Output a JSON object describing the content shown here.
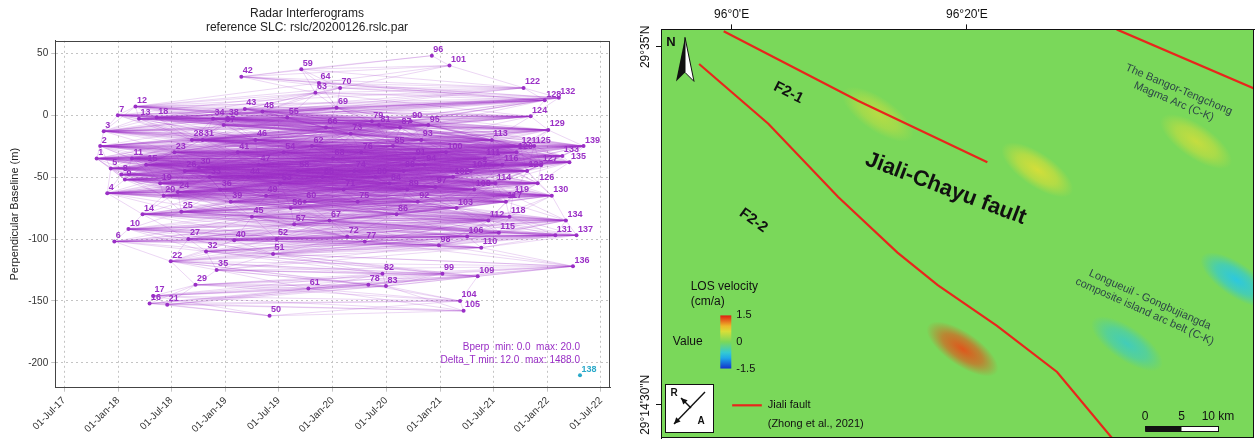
{
  "chart_data": [
    {
      "type": "scatter",
      "title": "Radar Interferograms",
      "subtitle": "reference SLC: rslc/20200126.rslc.par",
      "y_label": "Perpendicular Baseline (m)",
      "x": [
        "2017-10-20",
        "2017-11-01",
        "2017-11-13",
        "2017-11-25",
        "2017-12-07",
        "2017-12-19",
        "2017-12-31",
        "2018-01-12",
        "2018-01-24",
        "2018-02-05",
        "2018-02-17",
        "2018-03-01",
        "2018-03-13",
        "2018-03-25",
        "2018-04-06",
        "2018-04-18",
        "2018-04-30",
        "2018-05-12",
        "2018-05-24",
        "2018-06-05",
        "2018-06-17",
        "2018-06-29",
        "2018-07-11",
        "2018-07-23",
        "2018-08-04",
        "2018-08-16",
        "2018-08-28",
        "2018-09-09",
        "2018-09-21",
        "2018-10-03",
        "2018-10-15",
        "2018-10-27",
        "2018-11-08",
        "2018-11-20",
        "2018-12-02",
        "2018-12-14",
        "2018-12-26",
        "2019-01-07",
        "2019-01-19",
        "2019-01-31",
        "2019-02-12",
        "2019-02-24",
        "2019-03-08",
        "2019-03-20",
        "2019-04-01",
        "2019-04-13",
        "2019-04-25",
        "2019-05-07",
        "2019-05-19",
        "2019-05-31",
        "2019-06-12",
        "2019-06-24",
        "2019-07-06",
        "2019-07-18",
        "2019-07-30",
        "2019-08-11",
        "2019-08-23",
        "2019-09-04",
        "2019-09-16",
        "2019-09-28",
        "2019-10-10",
        "2019-10-22",
        "2019-11-03",
        "2019-11-15",
        "2019-11-27",
        "2019-12-09",
        "2019-12-21",
        "2020-01-02",
        "2020-01-14",
        "2020-01-26",
        "2020-02-07",
        "2020-02-19",
        "2020-03-02",
        "2020-03-14",
        "2020-03-26",
        "2020-04-07",
        "2020-04-19",
        "2020-05-01",
        "2020-05-13",
        "2020-05-25",
        "2020-06-06",
        "2020-06-18",
        "2020-06-30",
        "2020-07-12",
        "2020-07-24",
        "2020-08-05",
        "2020-08-17",
        "2020-08-29",
        "2020-09-10",
        "2020-09-22",
        "2020-10-04",
        "2020-10-16",
        "2020-10-28",
        "2020-11-09",
        "2020-11-21",
        "2020-12-03",
        "2020-12-15",
        "2020-12-27",
        "2021-01-08",
        "2021-01-20",
        "2021-02-01",
        "2021-02-13",
        "2021-02-25",
        "2021-03-09",
        "2021-03-21",
        "2021-04-02",
        "2021-04-14",
        "2021-04-26",
        "2021-05-08",
        "2021-05-20",
        "2021-06-01",
        "2021-06-13",
        "2021-06-25",
        "2021-07-07",
        "2021-07-19",
        "2021-07-31",
        "2021-08-12",
        "2021-08-24",
        "2021-09-05",
        "2021-09-17",
        "2021-09-29",
        "2021-10-11",
        "2021-10-23",
        "2021-11-04",
        "2021-11-16",
        "2021-11-28",
        "2021-12-10",
        "2021-12-22",
        "2022-01-03",
        "2022-01-15",
        "2022-01-27",
        "2022-02-08",
        "2022-02-20",
        "2022-03-04",
        "2022-03-16",
        "2022-03-28",
        "2022-04-09",
        "2022-04-21",
        "2022-05-03"
      ],
      "series": [
        {
          "color": "#9a2fc6",
          "values": [
            -35,
            -25,
            -13,
            -63,
            -43,
            -102,
            0,
            -48,
            -52,
            -92,
            -35,
            7,
            -3,
            -80,
            -40,
            -152,
            -146,
            -2,
            -55,
            -65,
            -153,
            -118,
            -30,
            -62,
            -78,
            -45,
            -100,
            -20,
            -137,
            -42,
            -20,
            -110,
            -50,
            -3,
            -125,
            -60,
            -8,
            -3,
            -70,
            -101,
            -30,
            31,
            5,
            -50,
            -82,
            -20,
            -40,
            3,
            -65,
            -162,
            -112,
            -100,
            -55,
            -30,
            -2,
            -75,
            -88,
            -45,
            37,
            -70,
            -140,
            -25,
            18,
            26,
            -50,
            -10,
            -85,
            -35,
            6,
            22,
            -60,
            -98,
            -15,
            -45,
            -70,
            -30,
            -102,
            -137,
            -5,
            -50,
            -8,
            -128,
            -138,
            -55,
            -25,
            -80,
            -10,
            -45,
            -60,
            -5,
            -35,
            -70,
            -20,
            -40,
            -8,
            48,
            -58,
            -105,
            -128,
            -30,
            40,
            -50,
            -75,
            -150,
            -158,
            -98,
            -45,
            -60,
            -130,
            -107,
            -35,
            -85,
            -20,
            -55,
            -95,
            -40,
            -70,
            -82,
            -65,
            -30,
            -25,
            22,
            -45,
            -1,
            -25,
            -55,
            -40,
            12,
            -12,
            -65,
            -97,
            14,
            -33,
            -85,
            -38,
            -122,
            -97,
            -210,
            -25
          ],
          "point_labels": [
            1,
            2,
            3,
            4,
            5,
            6,
            7,
            8,
            9,
            10,
            11,
            12,
            13,
            14,
            15,
            16,
            17,
            18,
            19,
            20,
            21,
            22,
            23,
            24,
            25,
            26,
            27,
            28,
            29,
            30,
            31,
            32,
            33,
            34,
            35,
            36,
            37,
            38,
            39,
            40,
            41,
            42,
            43,
            44,
            45,
            46,
            47,
            48,
            49,
            50,
            51,
            52,
            53,
            54,
            55,
            56,
            57,
            58,
            59,
            60,
            61,
            62,
            63,
            64,
            65,
            66,
            67,
            68,
            69,
            70,
            71,
            72,
            73,
            74,
            75,
            76,
            77,
            78,
            79,
            80,
            81,
            82,
            83,
            84,
            85,
            86,
            87,
            88,
            89,
            90,
            91,
            92,
            93,
            94,
            95,
            96,
            97,
            98,
            99,
            100,
            101,
            102,
            103,
            104,
            105,
            106,
            107,
            108,
            109,
            110,
            111,
            112,
            113,
            114,
            115,
            116,
            117,
            118,
            119,
            120,
            121,
            122,
            123,
            124,
            125,
            126,
            127,
            128,
            129,
            130,
            131,
            132,
            133,
            134,
            135,
            136,
            137,
            138,
            139
          ],
          "colors": [
            "#9a2fc6",
            "#9a2fc6",
            "#9a2fc6",
            "#9a2fc6",
            "#9a2fc6",
            "#9a2fc6",
            "#9a2fc6",
            "#9a2fc6",
            "#9a2fc6",
            "#9a2fc6",
            "#9a2fc6",
            "#9a2fc6",
            "#9a2fc6",
            "#9a2fc6",
            "#9a2fc6",
            "#9a2fc6",
            "#9a2fc6",
            "#9a2fc6",
            "#9a2fc6",
            "#9a2fc6",
            "#9a2fc6",
            "#9a2fc6",
            "#9a2fc6",
            "#9a2fc6",
            "#9a2fc6",
            "#9a2fc6",
            "#9a2fc6",
            "#9a2fc6",
            "#9a2fc6",
            "#9a2fc6",
            "#9a2fc6",
            "#9a2fc6",
            "#9a2fc6",
            "#9a2fc6",
            "#9a2fc6",
            "#9a2fc6",
            "#9a2fc6",
            "#9a2fc6",
            "#9a2fc6",
            "#9a2fc6",
            "#9a2fc6",
            "#9a2fc6",
            "#9a2fc6",
            "#9a2fc6",
            "#9a2fc6",
            "#9a2fc6",
            "#9a2fc6",
            "#9a2fc6",
            "#9a2fc6",
            "#9a2fc6",
            "#9a2fc6",
            "#9a2fc6",
            "#9a2fc6",
            "#9a2fc6",
            "#9a2fc6",
            "#9a2fc6",
            "#9a2fc6",
            "#9a2fc6",
            "#9a2fc6",
            "#9a2fc6",
            "#9a2fc6",
            "#9a2fc6",
            "#9a2fc6",
            "#9a2fc6",
            "#9a2fc6",
            "#9a2fc6",
            "#9a2fc6",
            "#9a2fc6",
            "#9a2fc6",
            "#9a2fc6",
            "#9a2fc6",
            "#9a2fc6",
            "#9a2fc6",
            "#9a2fc6",
            "#9a2fc6",
            "#9a2fc6",
            "#9a2fc6",
            "#9a2fc6",
            "#9a2fc6",
            "#9a2fc6",
            "#9a2fc6",
            "#9a2fc6",
            "#9a2fc6",
            "#9a2fc6",
            "#9a2fc6",
            "#9a2fc6",
            "#9a2fc6",
            "#9a2fc6",
            "#9a2fc6",
            "#9a2fc6",
            "#9a2fc6",
            "#9a2fc6",
            "#9a2fc6",
            "#9a2fc6",
            "#9a2fc6",
            "#9a2fc6",
            "#9a2fc6",
            "#9a2fc6",
            "#9a2fc6",
            "#9a2fc6",
            "#9a2fc6",
            "#9a2fc6",
            "#9a2fc6",
            "#9a2fc6",
            "#9a2fc6",
            "#9a2fc6",
            "#9a2fc6",
            "#9a2fc6",
            "#9a2fc6",
            "#9a2fc6",
            "#9a2fc6",
            "#9a2fc6",
            "#9a2fc6",
            "#9a2fc6",
            "#9a2fc6",
            "#9a2fc6",
            "#9a2fc6",
            "#9a2fc6",
            "#9a2fc6",
            "#9a2fc6",
            "#9a2fc6",
            "#9a2fc6",
            "#9a2fc6",
            "#9a2fc6",
            "#9a2fc6",
            "#9a2fc6",
            "#9a2fc6",
            "#9a2fc6",
            "#9a2fc6",
            "#9a2fc6",
            "#9a2fc6",
            "#9a2fc6",
            "#9a2fc6",
            "#9a2fc6",
            "#9a2fc6",
            "#9a2fc6",
            "#9a2fc6",
            "#29a9c9",
            "#9a2fc6"
          ]
        }
      ],
      "network": {
        "bperp": {
          "text": "Bperp  min: 0.0  max: 20.0",
          "min": 0,
          "max": 20
        },
        "delta_t": {
          "text": "Delta_T min: 12.0  max: 1488.0",
          "min": 12,
          "max": 1488
        }
      },
      "xlim": [
        "2017-06-01",
        "2022-08-01"
      ],
      "xticks": [
        {
          "value": "2017-07-01",
          "label": "01-Jul-17"
        },
        {
          "value": "2018-01-01",
          "label": "01-Jan-18"
        },
        {
          "value": "2018-07-01",
          "label": "01-Jul-18"
        },
        {
          "value": "2019-01-01",
          "label": "01-Jan-19"
        },
        {
          "value": "2019-07-01",
          "label": "01-Jul-19"
        },
        {
          "value": "2020-01-01",
          "label": "01-Jan-20"
        },
        {
          "value": "2020-07-01",
          "label": "01-Jul-20"
        },
        {
          "value": "2021-01-01",
          "label": "01-Jan-21"
        },
        {
          "value": "2021-07-01",
          "label": "01-Jul-21"
        },
        {
          "value": "2022-01-01",
          "label": "01-Jan-22"
        },
        {
          "value": "2022-07-01",
          "label": "01-Jul-22"
        }
      ],
      "ylim": [
        -220,
        60
      ],
      "yticks": [
        -200,
        -150,
        -100,
        -50,
        0,
        50
      ],
      "grid": true
    },
    {
      "type": "map",
      "xlim": [
        95.9,
        96.74
      ],
      "ylim": [
        29.21,
        29.6
      ],
      "xticks": [
        {
          "value": 96,
          "label": "96°0'E"
        },
        {
          "value": 96.3333,
          "label": "96°20'E"
        }
      ],
      "yticks": [
        {
          "value": 29.5833,
          "label": "29°35'N"
        },
        {
          "value": 29.2417,
          "label": "29°14'30\"N"
        }
      ],
      "north_arrow": "N",
      "look_direction": {
        "range": "R",
        "azimuth": "A"
      },
      "faults": {
        "name": "Jiali fault (Zhong et al., 2021)",
        "color": "#e8261c",
        "lines": [
          {
            "label": "F2-1",
            "lon": [
              95.9888,
              96.179,
              96.3623
            ],
            "lat": [
              29.5982,
              29.532,
              29.4733
            ]
          },
          {
            "label": "F2-2",
            "lon": [
              95.954,
              96.052,
              96.151,
              96.235,
              96.292,
              96.376,
              96.461,
              96.545
            ],
            "lat": [
              29.567,
              29.51,
              29.44,
              29.387,
              29.356,
              29.317,
              29.273,
              29.205
            ]
          },
          {
            "lon": [
              96.5455,
              96.74
            ],
            "lat": [
              29.6,
              29.5437
            ]
          }
        ]
      },
      "annotations": [
        "Jiali-Chayu fault",
        "The Bangor-Tengchong Magma Arc (C-K)",
        "Longueuil - Gongbujiangda composite island arc belt (C-K)"
      ],
      "colorbar": {
        "title": "LOS velocity (cm/a)",
        "label": "Value",
        "range": [
          -1.5,
          1.5
        ],
        "ticks": [
          1.5,
          0,
          -1.5
        ]
      },
      "anomalies": [
        {
          "lon": 96.327,
          "lat": 29.295,
          "value": 1.3
        },
        {
          "lon": 96.433,
          "lat": 29.466,
          "value": 0.6
        },
        {
          "lon": 96.658,
          "lat": 29.493,
          "value": 0.5
        },
        {
          "lon": 96.207,
          "lat": 29.519,
          "value": 0.4
        },
        {
          "lon": 96.715,
          "lat": 29.361,
          "value": -0.7
        },
        {
          "lon": 96.56,
          "lat": 29.3,
          "value": -0.5
        }
      ],
      "scale_bar": {
        "ticks": [
          0,
          5,
          {
            "value": 10,
            "label": "10 km"
          }
        ]
      }
    }
  ]
}
